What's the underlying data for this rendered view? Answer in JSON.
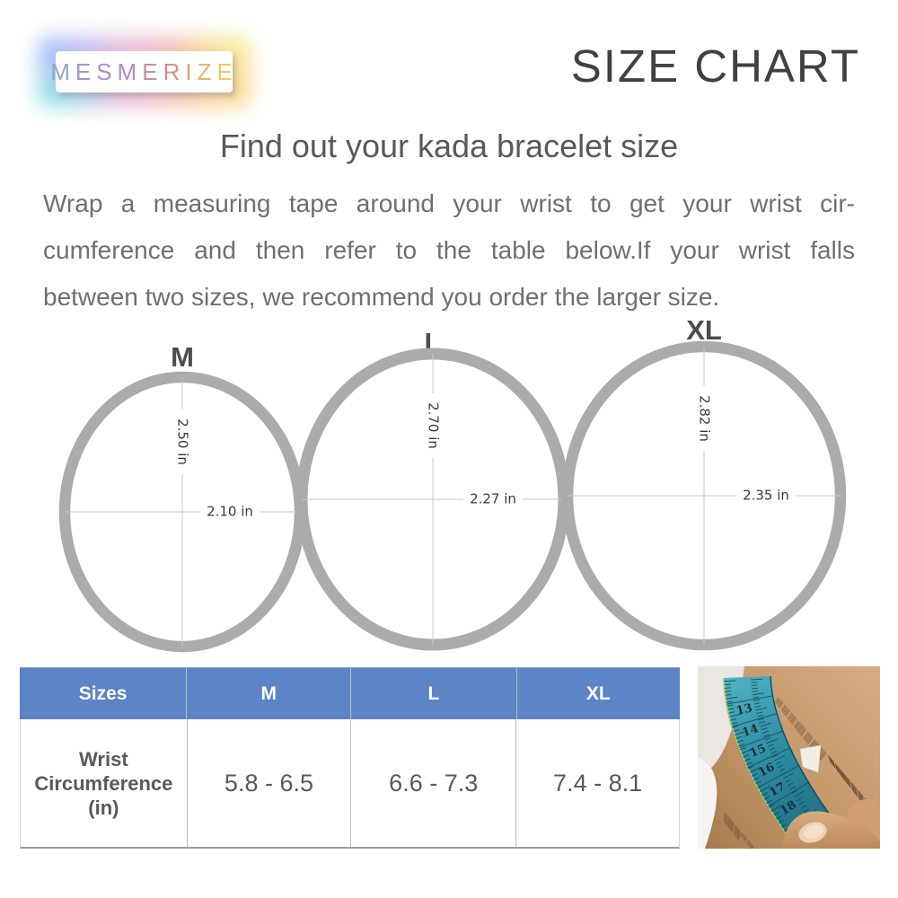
{
  "logo": {
    "letters": [
      {
        "ch": "M",
        "color": "#8fa6c9"
      },
      {
        "ch": "E",
        "color": "#9c9bca"
      },
      {
        "ch": "S",
        "color": "#a391c6"
      },
      {
        "ch": "M",
        "color": "#ae8bbe"
      },
      {
        "ch": "E",
        "color": "#c98da5"
      },
      {
        "ch": "R",
        "color": "#dc8d88"
      },
      {
        "ch": "I",
        "color": "#e29a77"
      },
      {
        "ch": "Z",
        "color": "#e6b56d"
      },
      {
        "ch": "E",
        "color": "#e9cb62"
      }
    ]
  },
  "header": {
    "label": "SIZE CHART"
  },
  "title": "Find out your kada bracelet size",
  "intro_lines": [
    "Wrap a measuring tape around your wrist to get your wrist cir-",
    "cumference and then refer to the table below.If your wrist falls",
    "between two sizes, we recommend you order the larger size."
  ],
  "rings": [
    {
      "label": "M",
      "vertical": "2.50 in",
      "horizontal": "2.10 in"
    },
    {
      "label": "L",
      "vertical": "2.70 in",
      "horizontal": "2.27 in"
    },
    {
      "label": "XL",
      "vertical": "2.82 in",
      "horizontal": "2.35 in"
    }
  ],
  "table": {
    "headers": [
      "Sizes",
      "M",
      "L",
      "XL"
    ],
    "row_label": "Wrist Circumference (in)",
    "values": [
      "5.8 - 6.5",
      "6.6 - 7.3",
      "7.4 - 8.1"
    ]
  },
  "photo": {
    "tape_numbers": [
      "13",
      "14",
      "15",
      "16",
      "17",
      "18"
    ]
  },
  "colors": {
    "table_header_bg": "#5c84c6",
    "ring_stroke": "#ababab",
    "body_text": "#595959",
    "tape_teal": "#2b8aa0"
  }
}
